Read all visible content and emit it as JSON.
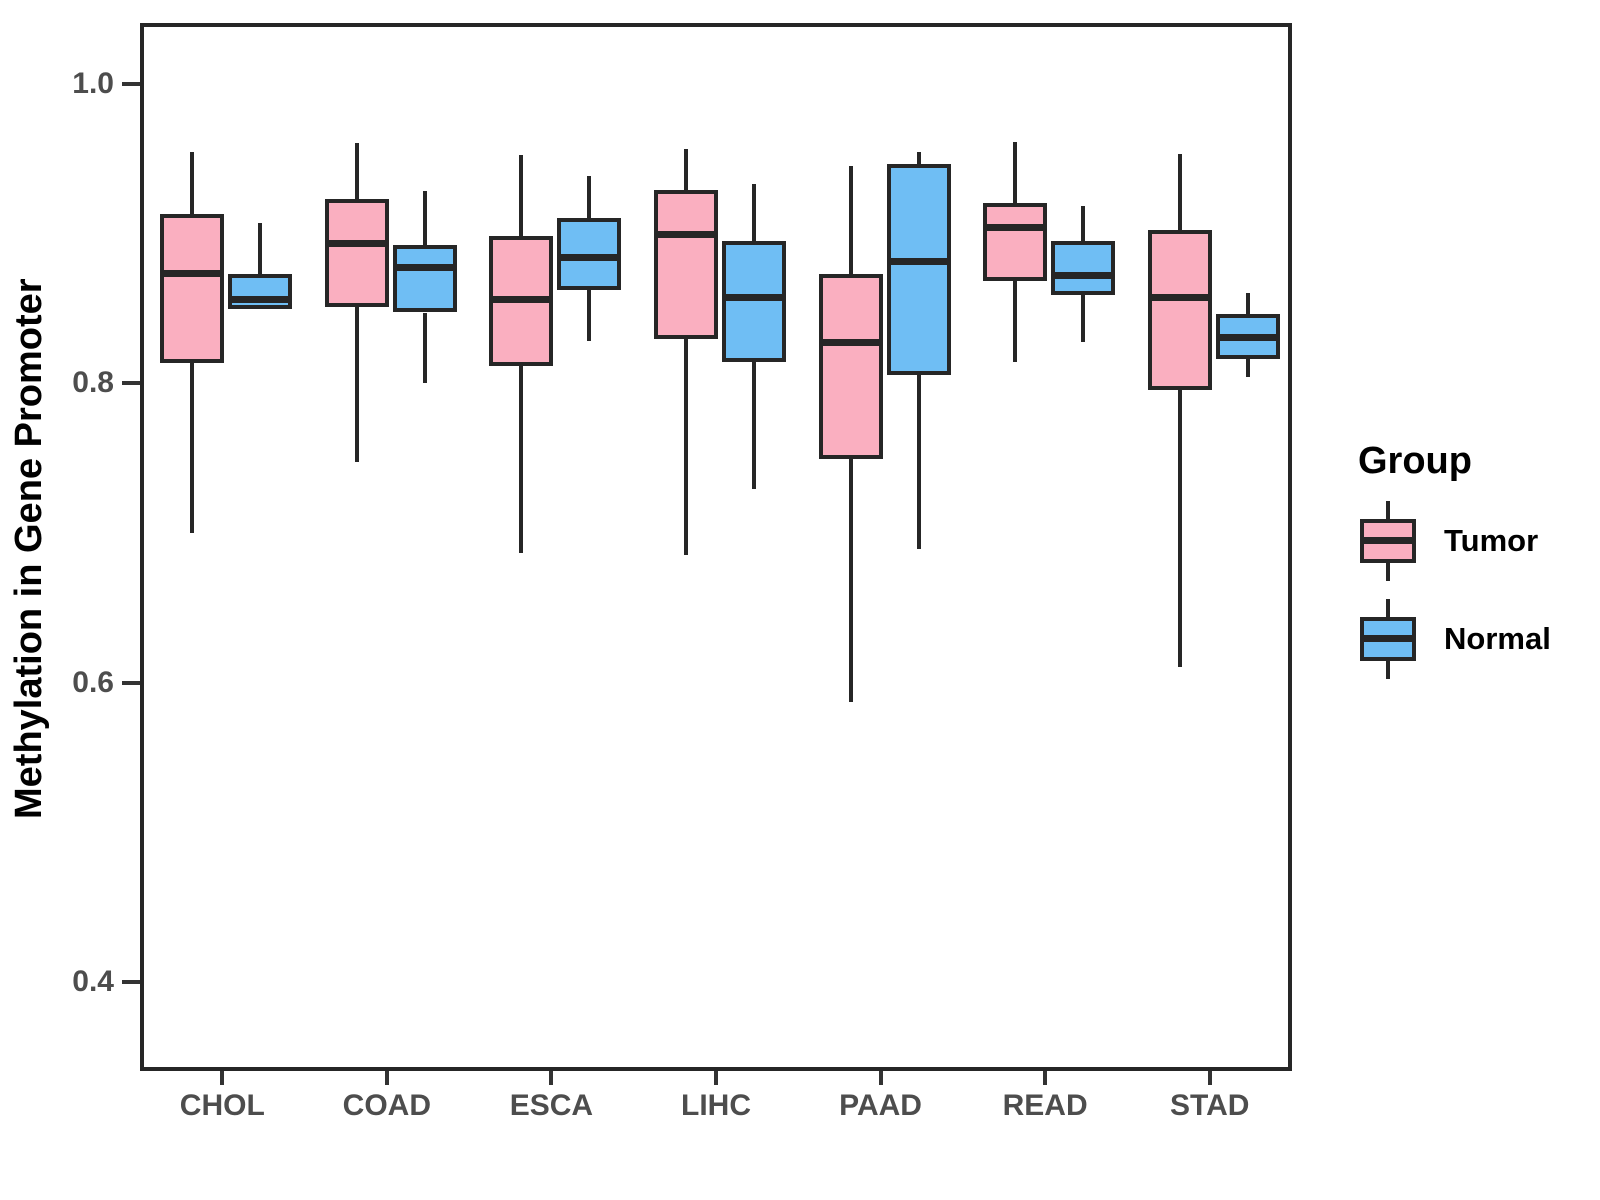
{
  "chart_data": {
    "type": "boxplot",
    "title": "",
    "xlabel": "",
    "ylabel": "Methylation in Gene Promoter",
    "ylim": [
      0.34,
      1.04
    ],
    "grid": false,
    "y_ticks": [
      {
        "value": 1.0,
        "label": "1.0"
      },
      {
        "value": 0.8,
        "label": "0.8"
      },
      {
        "value": 0.6,
        "label": "0.6"
      },
      {
        "value": 0.4,
        "label": "0.4"
      }
    ],
    "categories": [
      "CHOL",
      "COAD",
      "ESCA",
      "LIHC",
      "PAAD",
      "READ",
      "STAD"
    ],
    "groups": [
      {
        "name": "Tumor",
        "fill": "#FAAFC0",
        "stroke": "#262626"
      },
      {
        "name": "Normal",
        "fill": "#6FBEF4",
        "stroke": "#262626"
      }
    ],
    "series": [
      {
        "group": "Tumor",
        "boxes": [
          {
            "category": "CHOL",
            "min": 0.703,
            "q1": 0.816,
            "median": 0.876,
            "q3": 0.916,
            "max": 0.957
          },
          {
            "category": "COAD",
            "min": 0.75,
            "q1": 0.854,
            "median": 0.896,
            "q3": 0.926,
            "max": 0.963
          },
          {
            "category": "ESCA",
            "min": 0.689,
            "q1": 0.814,
            "median": 0.859,
            "q3": 0.901,
            "max": 0.955
          },
          {
            "category": "LIHC",
            "min": 0.688,
            "q1": 0.832,
            "median": 0.902,
            "q3": 0.932,
            "max": 0.959
          },
          {
            "category": "PAAD",
            "min": 0.59,
            "q1": 0.752,
            "median": 0.83,
            "q3": 0.876,
            "max": 0.948
          },
          {
            "category": "READ",
            "min": 0.817,
            "q1": 0.871,
            "median": 0.907,
            "q3": 0.923,
            "max": 0.964
          },
          {
            "category": "STAD",
            "min": 0.613,
            "q1": 0.798,
            "median": 0.86,
            "q3": 0.905,
            "max": 0.956
          }
        ]
      },
      {
        "group": "Normal",
        "boxes": [
          {
            "category": "CHOL",
            "min": 0.852,
            "q1": 0.852,
            "median": 0.859,
            "q3": 0.876,
            "max": 0.91
          },
          {
            "category": "COAD",
            "min": 0.803,
            "q1": 0.85,
            "median": 0.88,
            "q3": 0.895,
            "max": 0.931
          },
          {
            "category": "ESCA",
            "min": 0.831,
            "q1": 0.865,
            "median": 0.887,
            "q3": 0.913,
            "max": 0.941
          },
          {
            "category": "LIHC",
            "min": 0.732,
            "q1": 0.817,
            "median": 0.86,
            "q3": 0.898,
            "max": 0.936
          },
          {
            "category": "PAAD",
            "min": 0.692,
            "q1": 0.808,
            "median": 0.884,
            "q3": 0.949,
            "max": 0.957
          },
          {
            "category": "READ",
            "min": 0.83,
            "q1": 0.862,
            "median": 0.875,
            "q3": 0.898,
            "max": 0.921
          },
          {
            "category": "STAD",
            "min": 0.807,
            "q1": 0.819,
            "median": 0.833,
            "q3": 0.849,
            "max": 0.863
          }
        ]
      }
    ],
    "legend_position": "right"
  },
  "legend": {
    "title": "Group",
    "items": [
      {
        "label": "Tumor",
        "fill": "#FAAFC0"
      },
      {
        "label": "Normal",
        "fill": "#6FBEF4"
      }
    ]
  }
}
